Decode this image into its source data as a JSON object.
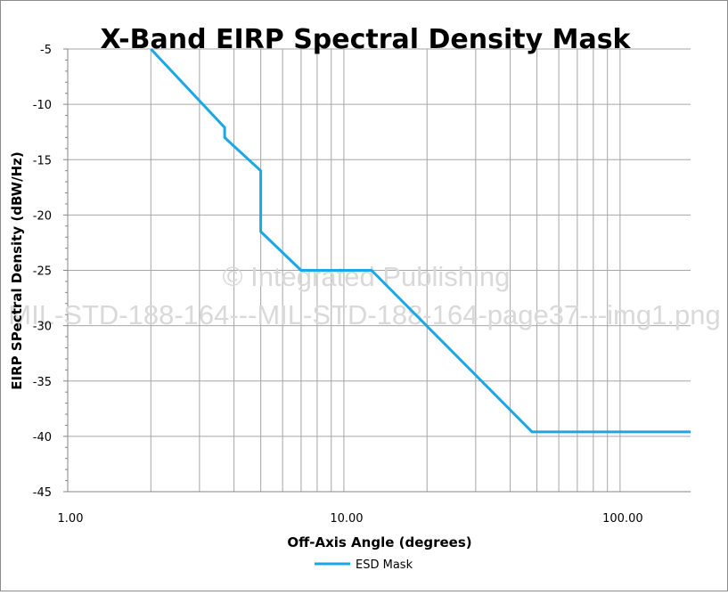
{
  "chart_data": {
    "type": "line",
    "title": "X-Band EIRP Spectral Density Mask",
    "xlabel": "Off-Axis Angle (degrees)",
    "ylabel": "EIRP SPectral Density (dBW/Hz)",
    "x_scale": "log",
    "xlim": [
      1,
      180
    ],
    "ylim": [
      -45,
      -5
    ],
    "x_tick_labels": [
      "1.00",
      "10.00",
      "100.00"
    ],
    "x_tick_values": [
      1,
      10,
      100
    ],
    "y_ticks": [
      -5,
      -10,
      -15,
      -20,
      -25,
      -30,
      -35,
      -40,
      -45
    ],
    "grid": true,
    "legend_position": "bottom",
    "series": [
      {
        "name": "ESD Mask",
        "color": "#1aa7e6",
        "points": [
          [
            2,
            -5.0
          ],
          [
            3.7,
            -12.1
          ],
          [
            3.7,
            -13.0
          ],
          [
            5,
            -16.0
          ],
          [
            5,
            -21.5
          ],
          [
            7,
            -25.0
          ],
          [
            12.6,
            -25.0
          ],
          [
            48,
            -39.6
          ],
          [
            180,
            -39.6
          ]
        ]
      }
    ]
  },
  "watermark": {
    "line1": "© Integrated Publishing",
    "line2": "MIL-STD-188-164---MIL-STD-188-164-page37---img1.png"
  }
}
